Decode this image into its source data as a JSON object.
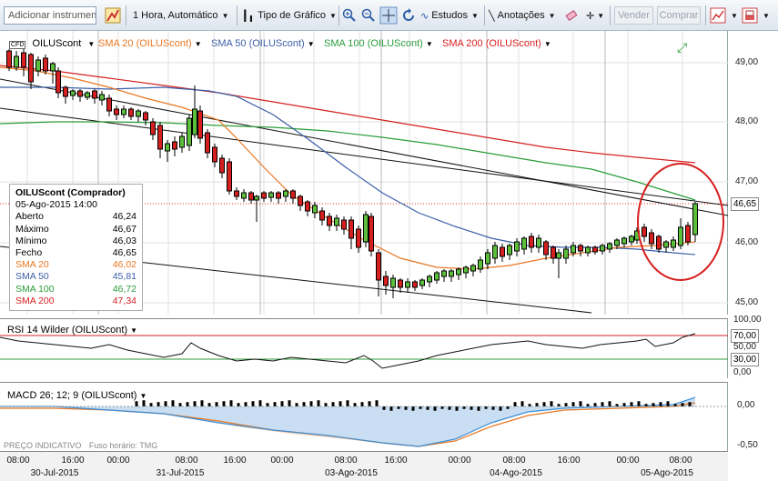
{
  "toolbar": {
    "instrument_placeholder": "Adicionar instrumento",
    "timeframe": "1 Hora, Automático",
    "chart_type": "Tipo de Gráfico",
    "studies": "Estudos",
    "annotations": "Anotações",
    "sell": "Vender",
    "buy": "Comprar"
  },
  "legend": {
    "symbol": "OILUScont",
    "sma20": "SMA 20 (OILUScont)",
    "sma50": "SMA 50 (OILUScont)",
    "sma100": "SMA 100 (OILUScont)",
    "sma200": "SMA 200 (OILUScont)",
    "colors": {
      "sma20": "#e87722",
      "sma50": "#3b5fa8",
      "sma100": "#2a9d3a",
      "sma200": "#d62020"
    }
  },
  "infobox": {
    "title": "OILUScont (Comprador)",
    "datetime": "05-Ago-2015 14:00",
    "rows": [
      {
        "label": "Aberto",
        "value": "46,24",
        "color": "#000"
      },
      {
        "label": "Máximo",
        "value": "46,67",
        "color": "#000"
      },
      {
        "label": "Mínimo",
        "value": "46,03",
        "color": "#000"
      },
      {
        "label": "Fecho",
        "value": "46,65",
        "color": "#000"
      },
      {
        "label": "SMA 20",
        "value": "46,02",
        "color": "#e87722"
      },
      {
        "label": "SMA 50",
        "value": "45,81",
        "color": "#3b5fa8"
      },
      {
        "label": "SMA 100",
        "value": "46,72",
        "color": "#2a9d3a"
      },
      {
        "label": "SMA 200",
        "value": "47,34",
        "color": "#d62020"
      }
    ]
  },
  "price_axis": {
    "ticks": [
      "49,00",
      "48,00",
      "47,00",
      "46,00",
      "45,00"
    ],
    "current": "46,65"
  },
  "rsi": {
    "title": "RSI 14 Wilder (OILUScont)",
    "ticks": [
      "100,00",
      "70,00",
      "50,00",
      "30,00",
      "0,00"
    ]
  },
  "macd": {
    "title": "MACD 26; 12; 9 (OILUScont)",
    "ticks": [
      "0,00",
      "-0,50"
    ]
  },
  "footer": {
    "note": "PREÇO INDICATIVO",
    "timezone": "Fuso horário: TMG"
  },
  "xaxis": {
    "times": [
      "08:00",
      "16:00",
      "00:00",
      "08:00",
      "16:00",
      "00:00",
      "08:00",
      "16:00",
      "00:00",
      "08:00",
      "16:00",
      "00:00",
      "08:00"
    ],
    "dates": [
      "30-Jul-2015",
      "31-Jul-2015",
      "03-Ago-2015",
      "04-Ago-2015",
      "05-Ago-2015"
    ]
  }
}
